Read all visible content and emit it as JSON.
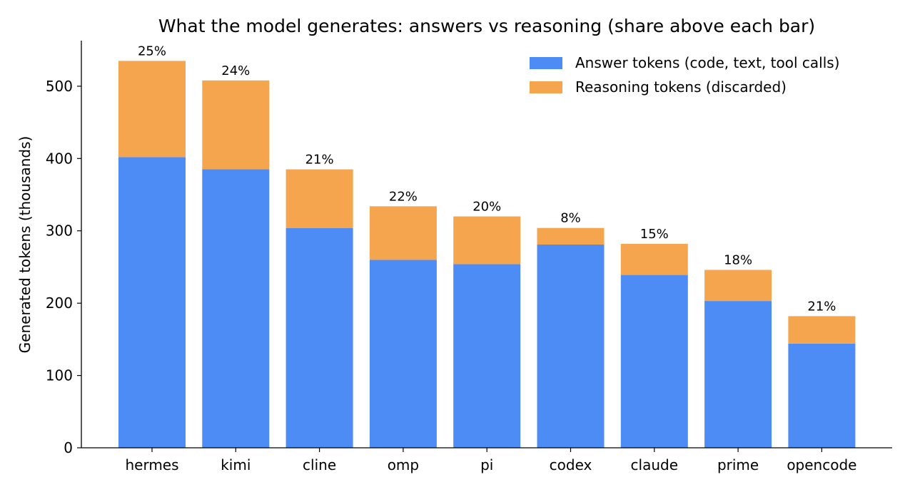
{
  "chart_data": {
    "type": "bar",
    "stacked": true,
    "title": "What the model generates: answers vs reasoning (share above each bar)",
    "xlabel": "",
    "ylabel": "Generated tokens (thousands)",
    "ylim": [
      0,
      563
    ],
    "yticks": [
      0,
      100,
      200,
      300,
      400,
      500
    ],
    "categories": [
      "hermes",
      "kimi",
      "cline",
      "omp",
      "pi",
      "codex",
      "claude",
      "prime",
      "opencode"
    ],
    "series": [
      {
        "name": "Answer tokens (code, text, tool calls)",
        "color": "#4e8cf5",
        "values": [
          402,
          385,
          304,
          260,
          254,
          281,
          239,
          203,
          144
        ]
      },
      {
        "name": "Reasoning tokens (discarded)",
        "color": "#f5a54e",
        "values": [
          133,
          123,
          81,
          74,
          66,
          23,
          43,
          43,
          38
        ]
      }
    ],
    "share_labels": [
      "25%",
      "24%",
      "21%",
      "22%",
      "20%",
      "8%",
      "15%",
      "18%",
      "21%"
    ],
    "legend_position": "top-right",
    "grid": false
  }
}
